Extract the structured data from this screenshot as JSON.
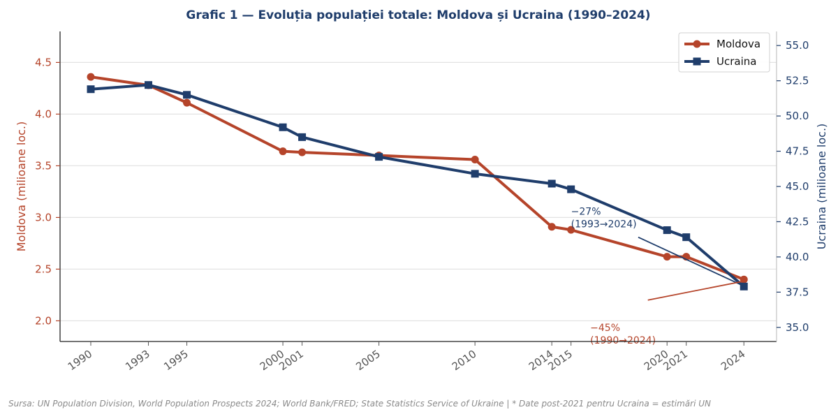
{
  "chart_data": {
    "type": "line",
    "title": "Grafic 1 — Evoluția populației totale: Moldova și Ucraina (1990–2024)",
    "x": [
      1990,
      1993,
      1995,
      2000,
      2001,
      2005,
      2010,
      2014,
      2015,
      2020,
      2021,
      2024
    ],
    "x_tick_labels": [
      "1990",
      "1993",
      "1995",
      "2000",
      "2001",
      "2005",
      "2010",
      "2014",
      "2015",
      "2020",
      "2021",
      "2024"
    ],
    "xlim": [
      1988.4,
      2025.7
    ],
    "series": [
      {
        "name": "Moldova",
        "axis": "left",
        "color": "#b5442a",
        "marker": "circle",
        "values": [
          4.36,
          4.28,
          4.11,
          3.64,
          3.63,
          3.6,
          3.56,
          2.91,
          2.88,
          2.62,
          2.62,
          2.4
        ]
      },
      {
        "name": "Ucraina",
        "axis": "right",
        "color": "#1f3d6b",
        "marker": "square",
        "values": [
          51.9,
          52.2,
          51.5,
          49.2,
          48.5,
          47.1,
          45.9,
          45.2,
          44.8,
          41.9,
          41.4,
          37.9
        ]
      }
    ],
    "y_left": {
      "label": "Moldova (milioane loc.)",
      "ticks": [
        2.0,
        2.5,
        3.0,
        3.5,
        4.0,
        4.5
      ],
      "tick_labels": [
        "2.0",
        "2.5",
        "3.0",
        "3.5",
        "4.0",
        "4.5"
      ],
      "ylim": [
        1.8,
        4.8
      ],
      "color": "#b5442a"
    },
    "y_right": {
      "label": "Ucraina (milioane loc.)",
      "ticks": [
        35.0,
        37.5,
        40.0,
        42.5,
        45.0,
        47.5,
        50.0,
        52.5,
        55.0
      ],
      "tick_labels": [
        "35.0",
        "37.5",
        "40.0",
        "42.5",
        "45.0",
        "47.5",
        "50.0",
        "52.5",
        "55.0"
      ],
      "ylim": [
        34.0,
        56.0
      ],
      "color": "#1f3d6b"
    },
    "grid": true,
    "legend": {
      "position": "top-right",
      "entries": [
        "Moldova",
        "Ucraina"
      ]
    },
    "annotations": [
      {
        "name": "ukraine-change",
        "line1": "−27%",
        "line2": "(1993→2024)",
        "series": "Ucraina",
        "points_to_year": 2024,
        "text_at": [
          2015,
          43.0
        ],
        "arrow_from": [
          2018.5,
          41.4
        ],
        "color": "#1f3d6b"
      },
      {
        "name": "moldova-change",
        "line1": "−45%",
        "line2": "(1990→2024)",
        "series": "Moldova",
        "points_to_year": 2024,
        "text_at": [
          2016,
          1.9
        ],
        "arrow_from": [
          2019,
          2.2
        ],
        "color": "#b5442a"
      }
    ],
    "source": "Sursa: UN Population Division, World Population Prospects 2024; World Bank/FRED; State Statistics Service of Ukraine  |  * Date post-2021 pentru Ucraina = estimări UN"
  }
}
